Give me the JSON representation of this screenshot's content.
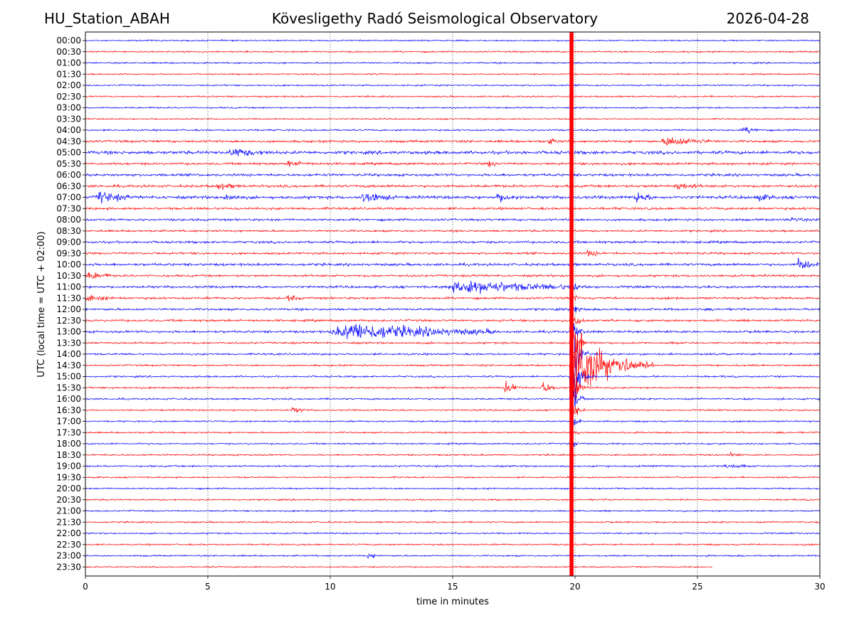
{
  "header": {
    "station": "HU_Station_ABAH",
    "observatory": "Kövesligethy Radó Seismological Observatory",
    "date": "2026-04-28"
  },
  "chart_data": {
    "type": "line",
    "title": "Kövesligethy Radó Seismological Observatory",
    "xlabel": "time in minutes",
    "ylabel": "UTC (local time = UTC + 02:00)",
    "xlim": [
      0,
      30
    ],
    "xticks": [
      "0",
      "5",
      "10",
      "15",
      "20",
      "25",
      "30"
    ],
    "xtick_values": [
      0,
      5,
      10,
      15,
      20,
      25,
      30
    ],
    "grid_x": "dotted",
    "colors": {
      "even": "#0000ff",
      "odd": "#ff0000"
    },
    "rows": [
      "00:00",
      "00:30",
      "01:00",
      "01:30",
      "02:00",
      "02:30",
      "03:00",
      "03:30",
      "04:00",
      "04:30",
      "05:00",
      "05:30",
      "06:00",
      "06:30",
      "07:00",
      "07:30",
      "08:00",
      "08:30",
      "09:00",
      "09:30",
      "10:00",
      "10:30",
      "11:00",
      "11:30",
      "12:00",
      "12:30",
      "13:00",
      "13:30",
      "14:00",
      "14:30",
      "15:00",
      "15:30",
      "16:00",
      "16:30",
      "17:00",
      "17:30",
      "18:00",
      "18:30",
      "19:00",
      "19:30",
      "20:00",
      "20:30",
      "21:00",
      "21:30",
      "22:00",
      "22:30",
      "23:00",
      "23:30"
    ],
    "noise_levels": [
      0.7,
      0.8,
      0.8,
      0.7,
      0.8,
      0.8,
      0.8,
      0.7,
      0.9,
      1.2,
      1.6,
      1.2,
      1.3,
      1.3,
      1.5,
      1.2,
      1.1,
      1.0,
      1.2,
      1.1,
      1.3,
      1.1,
      1.2,
      1.1,
      1.1,
      1.1,
      1.2,
      1.0,
      1.0,
      0.9,
      0.9,
      0.9,
      0.9,
      0.8,
      0.8,
      0.8,
      0.8,
      0.8,
      0.9,
      0.8,
      0.8,
      0.8,
      0.8,
      0.8,
      0.8,
      0.8,
      0.8,
      0.7
    ],
    "last_trace_end_minute": 25.6,
    "events": [
      {
        "row": "04:00",
        "start": 26.8,
        "end": 27.8,
        "amp": 3
      },
      {
        "row": "04:30",
        "start": 23.5,
        "end": 25.5,
        "amp": 5
      },
      {
        "row": "04:30",
        "start": 18.8,
        "end": 19.4,
        "amp": 3
      },
      {
        "row": "05:00",
        "start": 5.8,
        "end": 7.6,
        "amp": 4
      },
      {
        "row": "05:30",
        "start": 8.2,
        "end": 9.2,
        "amp": 3
      },
      {
        "row": "05:30",
        "start": 16.4,
        "end": 16.9,
        "amp": 3
      },
      {
        "row": "06:30",
        "start": 5.3,
        "end": 6.3,
        "amp": 3.5
      },
      {
        "row": "06:30",
        "start": 24.0,
        "end": 25.2,
        "amp": 3
      },
      {
        "row": "07:00",
        "start": 0.4,
        "end": 1.8,
        "amp": 6
      },
      {
        "row": "07:00",
        "start": 5.6,
        "end": 6.4,
        "amp": 3.5
      },
      {
        "row": "07:00",
        "start": 11.2,
        "end": 12.6,
        "amp": 5.5
      },
      {
        "row": "07:00",
        "start": 16.7,
        "end": 17.8,
        "amp": 4
      },
      {
        "row": "07:00",
        "start": 22.4,
        "end": 23.2,
        "amp": 5.5
      },
      {
        "row": "07:00",
        "start": 27.3,
        "end": 28.3,
        "amp": 3
      },
      {
        "row": "08:00",
        "start": 28.7,
        "end": 29.5,
        "amp": 2.5
      },
      {
        "row": "09:30",
        "start": 20.4,
        "end": 21.2,
        "amp": 3
      },
      {
        "row": "10:00",
        "start": 29.0,
        "end": 30.0,
        "amp": 6
      },
      {
        "row": "10:30",
        "start": 0.0,
        "end": 1.1,
        "amp": 4
      },
      {
        "row": "11:00",
        "start": 14.6,
        "end": 20.6,
        "amp": 7
      },
      {
        "row": "11:30",
        "start": 0.0,
        "end": 1.2,
        "amp": 3.5
      },
      {
        "row": "11:30",
        "start": 8.2,
        "end": 8.8,
        "amp": 3
      },
      {
        "row": "13:00",
        "start": 9.9,
        "end": 16.8,
        "amp": 9
      },
      {
        "row": "14:30",
        "start": 20.0,
        "end": 23.2,
        "amp": 18
      },
      {
        "row": "15:30",
        "start": 17.1,
        "end": 17.8,
        "amp": 8
      },
      {
        "row": "15:30",
        "start": 18.6,
        "end": 19.3,
        "amp": 6
      },
      {
        "row": "16:30",
        "start": 8.4,
        "end": 9.1,
        "amp": 3
      },
      {
        "row": "18:30",
        "start": 26.3,
        "end": 26.8,
        "amp": 2
      },
      {
        "row": "19:00",
        "start": 26.0,
        "end": 27.0,
        "amp": 2.5
      },
      {
        "row": "23:00",
        "start": 11.5,
        "end": 12.1,
        "amp": 2.5
      }
    ],
    "earthquake": {
      "arrival_minute": 19.85,
      "main_rows": [
        "11:00",
        "23:30"
      ],
      "peak_row": "14:30",
      "peak_amp": 60
    }
  }
}
